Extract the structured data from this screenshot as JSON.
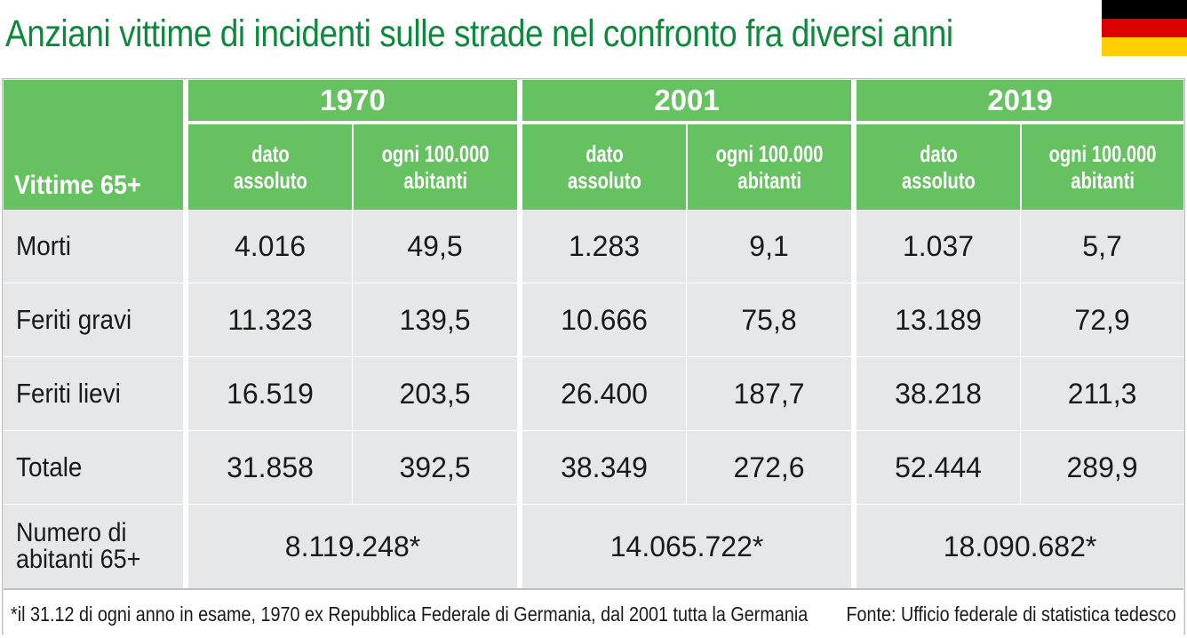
{
  "title": "Anziani vittime di incidenti sulle strade nel confronto fra diversi anni",
  "flag": {
    "icon": "germany-flag-icon",
    "colors": [
      "#000000",
      "#dd0000",
      "#ffce00"
    ]
  },
  "colors": {
    "title": "#0b8a3c",
    "header": "#66c161",
    "body": "#e6e7e8"
  },
  "table": {
    "corner_label": "Vittime 65+",
    "years": [
      "1970",
      "2001",
      "2019"
    ],
    "subheaders": {
      "absolute_l1": "dato",
      "absolute_l2": "assoluto",
      "per100k_l1": "ogni 100.000",
      "per100k_l2": "abitanti"
    },
    "rows": [
      {
        "label": "Morti",
        "values": [
          "4.016",
          "49,5",
          "1.283",
          "9,1",
          "1.037",
          "5,7"
        ]
      },
      {
        "label": "Feriti gravi",
        "values": [
          "11.323",
          "139,5",
          "10.666",
          "75,8",
          "13.189",
          "72,9"
        ]
      },
      {
        "label": "Feriti lievi",
        "values": [
          "16.519",
          "203,5",
          "26.400",
          "187,7",
          "38.218",
          "211,3"
        ]
      },
      {
        "label": "Totale",
        "values": [
          "31.858",
          "392,5",
          "38.349",
          "272,6",
          "52.444",
          "289,9"
        ]
      }
    ],
    "population": {
      "label_l1": "Numero di",
      "label_l2": "abitanti 65+",
      "values": [
        "8.119.248*",
        "14.065.722*",
        "18.090.682*"
      ]
    }
  },
  "footnote": "*il 31.12 di ogni anno in esame, 1970 ex Repubblica Federale di Germania, dal 2001 tutta la Germania",
  "source": "Fonte: Ufficio federale di statistica tedesco"
}
